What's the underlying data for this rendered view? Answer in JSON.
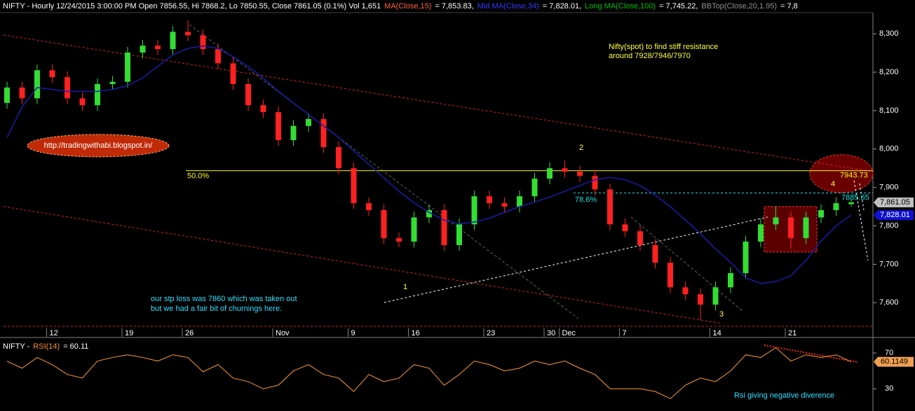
{
  "chart_data": [
    {
      "type": "candlestick",
      "header": [
        {
          "text": "NIFTY - Hourly 12/24/2015 3:00:00 PM Open 7856.55, Hi 7868.2, Lo 7850.55, Close 7861.05 (0.1%) Vol 1,651",
          "color": "#ffffff"
        },
        {
          "text": "MA(Close,15)",
          "color": "#ff6040"
        },
        {
          "text": "= 7,853.83,",
          "color": "#ffffff"
        },
        {
          "text": "Mid MA(Close,34)",
          "color": "#3838ff"
        },
        {
          "text": "= 7,828.01,",
          "color": "#ffffff"
        },
        {
          "text": "Long MA(Close,100)",
          "color": "#00c000"
        },
        {
          "text": "= 7,745.22,",
          "color": "#ffffff"
        },
        {
          "text": "BBTop(Close,20,1.95)",
          "color": "#909090"
        },
        {
          "text": "= 7,8",
          "color": "#ffffff"
        }
      ],
      "categories": [
        null,
        null,
        null,
        "12",
        null,
        null,
        null,
        null,
        "19",
        null,
        null,
        null,
        "26",
        null,
        null,
        null,
        null,
        null,
        "Nov",
        null,
        null,
        null,
        null,
        "9",
        null,
        null,
        null,
        "16",
        null,
        null,
        null,
        null,
        "23",
        null,
        null,
        null,
        "30",
        "Dec",
        null,
        null,
        null,
        "7",
        null,
        null,
        null,
        null,
        null,
        "14",
        null,
        null,
        null,
        null,
        "21",
        null,
        null,
        null,
        null
      ],
      "open": [
        8120,
        8160,
        8132,
        8205,
        8187,
        8132,
        8114,
        8169,
        8175,
        8251,
        8269,
        8260,
        8305,
        8296,
        8260,
        8223,
        8169,
        8114,
        8096,
        8023,
        8060,
        8078,
        8005,
        7950,
        7859,
        7841,
        7768,
        7759,
        7822,
        7841,
        7750,
        7804,
        7877,
        7859,
        7850,
        7877,
        7923,
        7950,
        7941,
        7930,
        7895,
        7804,
        7786,
        7750,
        7704,
        7640,
        7622,
        7595,
        7640,
        7677,
        7759,
        7804,
        7822,
        7768,
        7822,
        7841,
        7856.55
      ],
      "high": [
        8175,
        8175,
        8220,
        8220,
        8202,
        8147,
        8184,
        8190,
        8266,
        8284,
        8284,
        8320,
        8335,
        8311,
        8275,
        8238,
        8184,
        8129,
        8111,
        8075,
        8093,
        8093,
        8020,
        7965,
        7874,
        7856,
        7783,
        7837,
        7856,
        7856,
        7819,
        7892,
        7892,
        7874,
        7892,
        7938,
        7965,
        7970,
        7956,
        7945,
        7910,
        7819,
        7801,
        7765,
        7719,
        7655,
        7637,
        7655,
        7692,
        7774,
        7819,
        7850,
        7837,
        7837,
        7856,
        7874,
        7868.2
      ],
      "low": [
        8105,
        8117,
        8117,
        8172,
        8117,
        8099,
        8099,
        8154,
        8160,
        8236,
        8245,
        8245,
        8281,
        8245,
        8208,
        8154,
        8099,
        8081,
        8008,
        8008,
        8045,
        7990,
        7935,
        7844,
        7826,
        7753,
        7744,
        7744,
        7807,
        7735,
        7735,
        7789,
        7844,
        7835,
        7835,
        7862,
        7908,
        7926,
        7915,
        7880,
        7789,
        7771,
        7735,
        7689,
        7625,
        7607,
        7555,
        7580,
        7625,
        7662,
        7744,
        7789,
        7740,
        7753,
        7807,
        7826,
        7850.55
      ],
      "close": [
        8160,
        8132,
        8205,
        8187,
        8132,
        8114,
        8169,
        8175,
        8251,
        8269,
        8260,
        8305,
        8296,
        8260,
        8223,
        8169,
        8114,
        8096,
        8023,
        8060,
        8078,
        8005,
        7950,
        7859,
        7841,
        7768,
        7759,
        7822,
        7841,
        7750,
        7804,
        7877,
        7859,
        7850,
        7877,
        7923,
        7950,
        7941,
        7930,
        7895,
        7804,
        7786,
        7750,
        7704,
        7640,
        7622,
        7595,
        7640,
        7677,
        7759,
        7804,
        7822,
        7768,
        7822,
        7841,
        7859,
        7861.05
      ],
      "up_color": "#33dd33",
      "down_color": "#ff2020",
      "ma": {
        "color": "#1b1ba8",
        "values": [
          8030,
          8110,
          8160,
          8155,
          8150,
          8150,
          8150,
          8155,
          8165,
          8185,
          8215,
          8245,
          8262,
          8268,
          8262,
          8240,
          8215,
          8185,
          8150,
          8120,
          8090,
          8060,
          8030,
          7995,
          7960,
          7925,
          7890,
          7860,
          7835,
          7815,
          7805,
          7810,
          7820,
          7835,
          7850,
          7862,
          7875,
          7890,
          7905,
          7920,
          7926,
          7920,
          7905,
          7880,
          7850,
          7815,
          7780,
          7740,
          7705,
          7665,
          7650,
          7655,
          7670,
          7710,
          7760,
          7800,
          7828.01
        ]
      },
      "ylim": [
        7535,
        8355
      ],
      "yticks": [
        {
          "value": 7600,
          "label": "7,600"
        },
        {
          "value": 7700,
          "label": "7,700"
        },
        {
          "value": 7800,
          "label": "7,800"
        },
        {
          "value": 7900,
          "label": "7,900"
        },
        {
          "value": 8000,
          "label": "8,000"
        },
        {
          "value": 8100,
          "label": "8,100"
        },
        {
          "value": 8200,
          "label": "8,200"
        },
        {
          "value": 8300,
          "label": "8,300"
        }
      ],
      "hlines": [
        {
          "label": "50.0%",
          "value": 7943.73,
          "color": "#ffff00"
        },
        {
          "label": "78.6%",
          "value": 7885.65,
          "color": "#20e0e0"
        }
      ],
      "tags": [
        {
          "value": 7861.05,
          "label": "7,861.05",
          "color": "#c0c0c0",
          "text_color": "#000000"
        },
        {
          "value": 7828.01,
          "label": "7,828.01",
          "color": "#1010d0",
          "text_color": "#ffffff"
        }
      ],
      "annotations": {
        "resistance_note": [
          "Nifty(spot) to find stiff resistance",
          "around 7928/7946/7970"
        ],
        "url": "http://tradingwithabi.blogspot.in/",
        "stop_note": [
          "our stp loss was 7860 which was taken out",
          "but we had a fair bit of churnings here."
        ],
        "waves": [
          "1",
          "2",
          "3",
          "4"
        ]
      }
    },
    {
      "type": "line",
      "header": [
        {
          "text": "NIFTY -",
          "color": "#ffffff"
        },
        {
          "text": "RSI(14)",
          "color": "#ff9030"
        },
        {
          "text": "= 60.11",
          "color": "#ffffff"
        }
      ],
      "color": "#ff9a30",
      "values": [
        60.8,
        53,
        65,
        57,
        46,
        42,
        61,
        65,
        68,
        65,
        61,
        68,
        65,
        49,
        57,
        42,
        38,
        30,
        34,
        50,
        57,
        46,
        42,
        27,
        46,
        38,
        42,
        57,
        53,
        34,
        46,
        61,
        57,
        50,
        53,
        61,
        57,
        61,
        53,
        46,
        30,
        30,
        30,
        27,
        19,
        34,
        42,
        38,
        50,
        68,
        65,
        76,
        61,
        68,
        65,
        68,
        60.1149
      ],
      "ylim": [
        13,
        85
      ],
      "yticks": [
        30,
        70
      ],
      "tag": {
        "value": 60.1149,
        "color": "#f0a050"
      },
      "note": "Rsi giving negative diverence"
    }
  ]
}
